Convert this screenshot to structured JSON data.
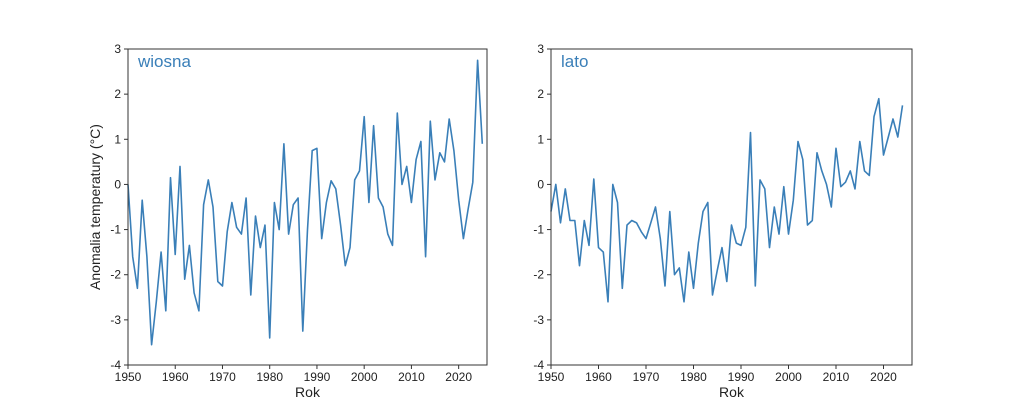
{
  "chart_data": [
    {
      "type": "line",
      "title": "wiosna",
      "xlabel": "Rok",
      "ylabel": "Anomalia temperatury (°C)",
      "xlim": [
        1950,
        2026
      ],
      "ylim": [
        -4,
        3
      ],
      "xticks": [
        1950,
        1960,
        1970,
        1980,
        1990,
        2000,
        2010,
        2020
      ],
      "yticks": [
        -4,
        -3,
        -2,
        -1,
        0,
        1,
        2,
        3
      ],
      "grid": false,
      "color": "#3a7fb8",
      "x_start": 1950,
      "values": [
        0.0,
        -1.6,
        -2.3,
        -0.35,
        -1.6,
        -3.55,
        -2.6,
        -1.5,
        -2.8,
        0.15,
        -1.55,
        0.4,
        -2.1,
        -1.35,
        -2.4,
        -2.8,
        -0.45,
        0.1,
        -0.5,
        -2.15,
        -2.25,
        -1.05,
        -0.4,
        -0.95,
        -1.1,
        -0.3,
        -2.45,
        -0.7,
        -1.4,
        -0.9,
        -3.4,
        -0.4,
        -1.0,
        0.9,
        -1.1,
        -0.45,
        -0.3,
        -3.25,
        -1.0,
        0.75,
        0.8,
        -1.2,
        -0.4,
        0.08,
        -0.1,
        -0.9,
        -1.8,
        -1.4,
        0.1,
        0.3,
        1.5,
        -0.4,
        1.3,
        -0.3,
        -0.5,
        -1.1,
        -1.35,
        1.58,
        0.0,
        0.4,
        -0.4,
        0.55,
        0.95,
        -1.6,
        1.4,
        0.1,
        0.7,
        0.5,
        1.45,
        0.75,
        -0.35,
        -1.2,
        -0.55,
        0.05,
        2.75,
        0.9
      ]
    },
    {
      "type": "line",
      "title": "lato",
      "xlabel": "Rok",
      "ylabel": "",
      "xlim": [
        1950,
        2026
      ],
      "ylim": [
        -4,
        3
      ],
      "xticks": [
        1950,
        1960,
        1970,
        1980,
        1990,
        2000,
        2010,
        2020
      ],
      "yticks": [
        -4,
        -3,
        -2,
        -1,
        0,
        1,
        2,
        3
      ],
      "grid": false,
      "color": "#3a7fb8",
      "x_start": 1950,
      "values": [
        -0.6,
        0.0,
        -0.85,
        -0.1,
        -0.8,
        -0.8,
        -1.8,
        -0.8,
        -1.35,
        0.12,
        -1.4,
        -1.5,
        -2.6,
        0.0,
        -0.4,
        -2.3,
        -0.9,
        -0.8,
        -0.85,
        -1.05,
        -1.2,
        -0.85,
        -0.5,
        -1.2,
        -2.25,
        -0.6,
        -2.0,
        -1.85,
        -2.6,
        -1.5,
        -2.3,
        -1.3,
        -0.6,
        -0.4,
        -2.45,
        -1.9,
        -1.4,
        -2.15,
        -0.9,
        -1.3,
        -1.35,
        -0.95,
        1.15,
        -2.25,
        0.1,
        -0.1,
        -1.4,
        -0.5,
        -1.1,
        -0.05,
        -1.1,
        -0.35,
        0.95,
        0.55,
        -0.9,
        -0.8,
        0.7,
        0.3,
        0.0,
        -0.5,
        0.8,
        -0.05,
        0.05,
        0.3,
        -0.1,
        0.95,
        0.3,
        0.2,
        1.5,
        1.9,
        0.65,
        1.05,
        1.45,
        1.05,
        1.75
      ]
    }
  ]
}
